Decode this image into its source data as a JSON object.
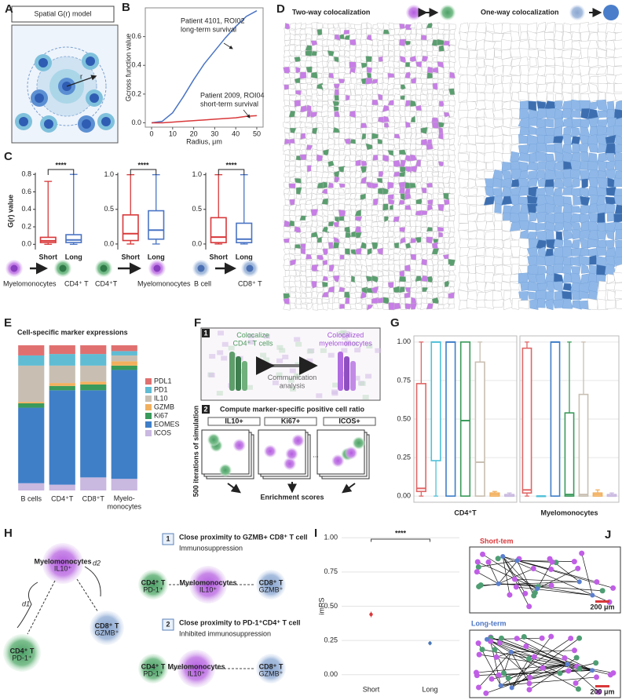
{
  "panel_labels": [
    "A",
    "B",
    "C",
    "D",
    "E",
    "F",
    "G",
    "H",
    "I",
    "J"
  ],
  "panel_a": {
    "title": "Spatial G(r) model",
    "r": "r"
  },
  "panel_c": {
    "cells": [
      "Myelomonocytes",
      "CD4⁺ T",
      "CD4⁺T",
      "Myelomonocytes",
      "B cell",
      "CD8⁺ T"
    ]
  },
  "panel_d": {
    "left_title": "Two-way colocalization",
    "right_title": "One-way colocalization"
  },
  "panel_f": {
    "step1": "1",
    "green_label": "Colocalize\nCD4⁺ T cells",
    "purple_label": "Colocalized\nmyelomonocytes",
    "arrow_label": "Communication\nanalysis",
    "step2": "2",
    "step2_title": "Compute marker-specific positive cell ratio",
    "markers": [
      "IL10+",
      "Ki67+",
      "ICOS+"
    ],
    "iterations": "500 iterations of simulation",
    "ellipsis": "...",
    "result": "Enrichment scores"
  },
  "panel_h": {
    "myelo": "Myelomonocytes",
    "il10": "IL10⁺",
    "d1": "d1",
    "d2": "d2",
    "cd4": "CD4⁺ T",
    "pd1": "PD-1⁺",
    "cd8": "CD8⁺ T",
    "gzmb": "GZMB⁺",
    "item1_num": "1",
    "item1_title": "Close proximity to GZMB+ CD8⁺ T cell",
    "item1_sub": "Immunosuppression",
    "item2_num": "2",
    "item2_title": "Close proximity to PD-1⁺CD4⁺ T cell",
    "item2_sub": "Inhibited immunosuppression"
  },
  "panel_j": {
    "short": "Short-tem",
    "long": "Long-term",
    "scale": "200 μm"
  },
  "chart_data": [
    {
      "type": "line",
      "xlabel": "Radius, μm",
      "ylabel": "Gcross function value",
      "x": [
        0,
        5,
        10,
        15,
        20,
        25,
        30,
        35,
        40,
        45,
        50
      ],
      "series": [
        {
          "name": "Patient 4101, ROI02",
          "note": "long-term survival",
          "color": "#4a74c4",
          "values": [
            0,
            0.01,
            0.07,
            0.18,
            0.3,
            0.41,
            0.5,
            0.59,
            0.67,
            0.74,
            0.78
          ]
        },
        {
          "name": "Patient 2009, ROI04",
          "note": "short-term survival",
          "color": "#d9383a",
          "values": [
            0,
            0,
            0.005,
            0.01,
            0.015,
            0.02,
            0.025,
            0.03,
            0.035,
            0.045,
            0.05
          ]
        }
      ],
      "xlim": [
        -3,
        53
      ],
      "xticks": [
        0,
        10,
        20,
        30,
        40,
        50
      ],
      "ylim": [
        -0.03,
        0.8
      ],
      "yticks": [
        {
          "value": 0,
          "label": "0.0"
        },
        {
          "value": 0.2,
          "label": "0.2"
        },
        {
          "value": 0.4,
          "label": "0.4"
        },
        {
          "value": 0.6,
          "label": "0.6"
        }
      ]
    },
    {
      "type": "box",
      "ylabel": "G(r) value",
      "categories": [
        "Short",
        "Long"
      ],
      "significance": "****",
      "boxes": [
        {
          "color": "#d9383a",
          "min": 0,
          "q1": 0.02,
          "median": 0.04,
          "q3": 0.08,
          "max": 0.72
        },
        {
          "color": "#4a74c4",
          "min": 0,
          "q1": 0.02,
          "median": 0.05,
          "q3": 0.11,
          "max": 0.8
        }
      ],
      "ylim": [
        -0.06,
        0.82
      ],
      "yticks": [
        {
          "value": 0,
          "label": "0.0"
        },
        {
          "value": 0.2,
          "label": "0.2"
        },
        {
          "value": 0.4,
          "label": "0.4"
        },
        {
          "value": 0.6,
          "label": "0.6"
        },
        {
          "value": 0.8,
          "label": "0.8"
        }
      ]
    },
    {
      "type": "box",
      "categories": [
        "Short",
        "Long"
      ],
      "significance": "****",
      "boxes": [
        {
          "color": "#d9383a",
          "min": 0,
          "q1": 0.05,
          "median": 0.15,
          "q3": 0.42,
          "max": 1.0
        },
        {
          "color": "#4a74c4",
          "min": 0,
          "q1": 0.07,
          "median": 0.2,
          "q3": 0.48,
          "max": 1.0
        }
      ],
      "ylim": [
        -0.08,
        1.03
      ],
      "yticks": [
        {
          "value": 0,
          "label": "0.0"
        },
        {
          "value": 0.5,
          "label": "0.5"
        },
        {
          "value": 1,
          "label": "1.0"
        }
      ]
    },
    {
      "type": "box",
      "categories": [
        "Short",
        "Long"
      ],
      "significance": "****",
      "boxes": [
        {
          "color": "#d9383a",
          "min": 0,
          "q1": 0.02,
          "median": 0.1,
          "q3": 0.38,
          "max": 1.0
        },
        {
          "color": "#4a74c4",
          "min": 0,
          "q1": 0.02,
          "median": 0.07,
          "q3": 0.3,
          "max": 1.0
        }
      ],
      "ylim": [
        -0.08,
        1.03
      ],
      "yticks": [
        {
          "value": 0,
          "label": "0.0"
        },
        {
          "value": 0.5,
          "label": "0.5"
        },
        {
          "value": 1,
          "label": "1.0"
        }
      ]
    },
    {
      "type": "stacked-bar",
      "title": "Cell-specific marker expressions",
      "categories": [
        "B cells",
        "CD4⁺T",
        "CD8⁺T",
        "Myelo-\nmonocytes"
      ],
      "ylim": [
        0,
        100
      ],
      "series": [
        {
          "name": "PDL1",
          "color": "#e07070",
          "values": [
            7,
            6,
            6,
            4
          ]
        },
        {
          "name": "PD1",
          "color": "#5fbcd3",
          "values": [
            7,
            8,
            8,
            3
          ]
        },
        {
          "name": "IL10",
          "color": "#c8bfb2",
          "values": [
            25,
            12,
            11,
            4
          ]
        },
        {
          "name": "GZMB",
          "color": "#f2b05e",
          "values": [
            1,
            2,
            2,
            3
          ]
        },
        {
          "name": "Ki67",
          "color": "#3a9a5b",
          "values": [
            3,
            3,
            4,
            3
          ]
        },
        {
          "name": "EOMES",
          "color": "#3f7fc8",
          "values": [
            52,
            65,
            60,
            75
          ]
        },
        {
          "name": "ICOS",
          "color": "#c9b8e0",
          "values": [
            5,
            4,
            9,
            8
          ]
        }
      ]
    },
    {
      "type": "box",
      "groups": [
        {
          "name": "CD4⁺T",
          "boxes": [
            {
              "color": "#e06666",
              "min": 0,
              "q1": 0.03,
              "median": 0.05,
              "q3": 0.73,
              "max": 1
            },
            {
              "color": "#4fc0d8",
              "min": 0,
              "q1": 0.23,
              "median": 1,
              "q3": 1,
              "max": 1
            },
            {
              "color": "#3f7fc8",
              "min": 0,
              "q1": 0,
              "median": 1,
              "q3": 1,
              "max": 1
            },
            {
              "color": "#3a9a5b",
              "min": 0,
              "q1": 0,
              "median": 0.49,
              "q3": 1,
              "max": 1
            },
            {
              "color": "#c8bfb2",
              "min": 0,
              "q1": 0,
              "median": 0.22,
              "q3": 0.87,
              "max": 1
            },
            {
              "color": "#f2b05e",
              "min": 0,
              "q1": 0,
              "median": 0.01,
              "q3": 0.02,
              "max": 0.03
            },
            {
              "color": "#c9b8e0",
              "min": 0,
              "q1": 0,
              "median": 0,
              "q3": 0.01,
              "max": 0.02
            }
          ]
        },
        {
          "name": "Myelomonocytes",
          "boxes": [
            {
              "color": "#e06666",
              "min": 0,
              "q1": 0.02,
              "median": 0.04,
              "q3": 0.96,
              "max": 1
            },
            {
              "color": "#4fc0d8",
              "min": 0,
              "q1": 0,
              "median": 0,
              "q3": 0,
              "max": 0
            },
            {
              "color": "#3f7fc8",
              "min": 0,
              "q1": 0,
              "median": 1,
              "q3": 1,
              "max": 1
            },
            {
              "color": "#3a9a5b",
              "min": 0,
              "q1": 0,
              "median": 0.01,
              "q3": 0.54,
              "max": 1
            },
            {
              "color": "#c8bfb2",
              "min": 0,
              "q1": 0,
              "median": 0.01,
              "q3": 0.66,
              "max": 1
            },
            {
              "color": "#f2b05e",
              "min": 0,
              "q1": 0,
              "median": 0.01,
              "q3": 0.02,
              "max": 0.04
            },
            {
              "color": "#c9b8e0",
              "min": 0,
              "q1": 0,
              "median": 0,
              "q3": 0.01,
              "max": 0.02
            }
          ]
        }
      ],
      "ylim": [
        -0.04,
        1.04
      ],
      "grid": true,
      "yticks": [
        {
          "value": 0,
          "label": "0.00"
        },
        {
          "value": 0.25,
          "label": "0.25"
        },
        {
          "value": 0.5,
          "label": "0.50"
        },
        {
          "value": 0.75,
          "label": "0.75"
        },
        {
          "value": 1,
          "label": "1.00"
        }
      ]
    },
    {
      "type": "scatter",
      "ylabel": "imRS",
      "categories": [
        "Short",
        "Long"
      ],
      "values": [
        0.44,
        0.23
      ],
      "errors": [
        0.02,
        0.015
      ],
      "colors": [
        "#d9383a",
        "#4a78b8"
      ],
      "significance": "****",
      "ylim": [
        -0.03,
        1.03
      ],
      "grid": true,
      "yticks": [
        {
          "value": 0,
          "label": "0.00"
        },
        {
          "value": 0.25,
          "label": "0.25"
        },
        {
          "value": 0.5,
          "label": "0.50"
        },
        {
          "value": 0.75,
          "label": "0.75"
        },
        {
          "value": 1,
          "label": "1.00"
        }
      ]
    }
  ]
}
